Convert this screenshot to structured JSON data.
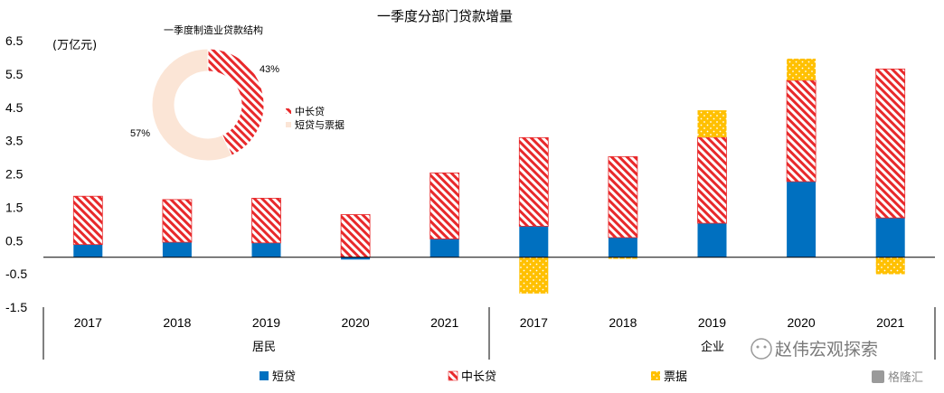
{
  "title": "一季度分部门贷款增量",
  "unit": "(万亿元)",
  "colors": {
    "short": "#0070C0",
    "medium_long": "#E8292B",
    "bills": "#FFC000",
    "donut_short": "#FBE5D6"
  },
  "legend": [
    {
      "key": "short",
      "label": "短贷",
      "style": "solid"
    },
    {
      "key": "medium_long",
      "label": "中长贷",
      "style": "hatch"
    },
    {
      "key": "bills",
      "label": "票据",
      "style": "dots"
    }
  ],
  "groups": [
    {
      "label": "居民"
    },
    {
      "label": "企业"
    }
  ],
  "chart_data": [
    {
      "type": "bar",
      "stacked": true,
      "title": "一季度分部门贷款增量",
      "ylabel": "(万亿元)",
      "ylim": [
        -1.5,
        6.5
      ],
      "yticks": [
        "6.5",
        "5.5",
        "4.5",
        "3.5",
        "2.5",
        "1.5",
        "0.5",
        "-0.5",
        "-1.5"
      ],
      "categories": [
        "2017",
        "2018",
        "2019",
        "2020",
        "2021",
        "2017",
        "2018",
        "2019",
        "2020",
        "2021"
      ],
      "category_groups": [
        "居民",
        "居民",
        "居民",
        "居民",
        "居民",
        "企业",
        "企业",
        "企业",
        "企业",
        "企业"
      ],
      "series": [
        {
          "name": "短贷",
          "key": "short",
          "values": [
            0.38,
            0.45,
            0.43,
            -0.07,
            0.55,
            0.93,
            0.59,
            1.02,
            2.27,
            1.18
          ]
        },
        {
          "name": "中长贷",
          "key": "medium_long",
          "values": [
            1.45,
            1.28,
            1.34,
            1.28,
            1.98,
            2.66,
            2.43,
            2.58,
            3.04,
            4.47
          ]
        },
        {
          "name": "票据",
          "key": "bills",
          "values": [
            0,
            0,
            0,
            0,
            0,
            -1.09,
            -0.05,
            0.81,
            0.65,
            -0.51
          ]
        }
      ],
      "legend_position": "bottom",
      "grid": false
    },
    {
      "type": "pie",
      "donut": true,
      "title": "一季度制造业贷款结构",
      "slices": [
        {
          "name": "中长贷",
          "key": "medium_long",
          "value": 43,
          "label": "43%"
        },
        {
          "name": "短贷与票据",
          "key": "donut_short",
          "value": 57,
          "label": "57%"
        }
      ],
      "legend_position": "right"
    }
  ],
  "watermark": {
    "main": "赵伟宏观探索",
    "sub": "格隆汇"
  }
}
